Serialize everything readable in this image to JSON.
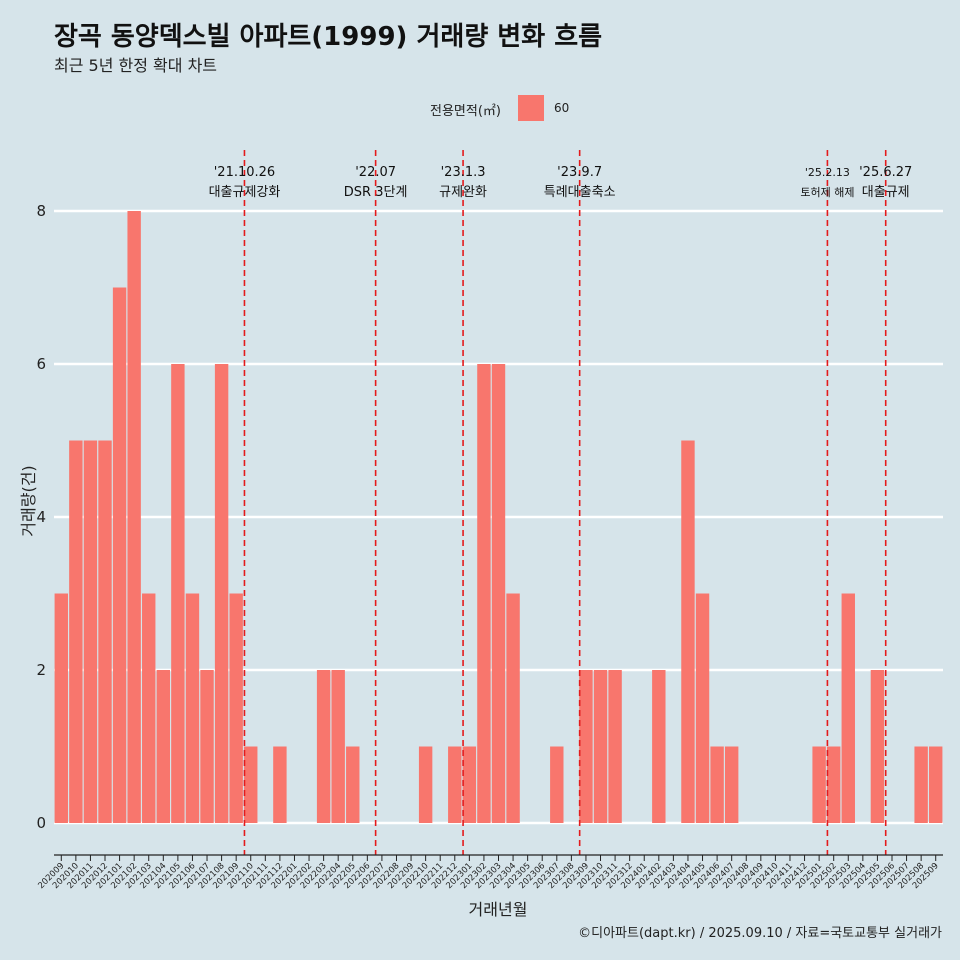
{
  "header": {
    "title": "장곡 동양덱스빌 아파트(1999) 거래량 변화 흐름",
    "subtitle": "최근 5년 한정 확대 차트"
  },
  "legend": {
    "title": "전용면적(㎡)",
    "label": "60",
    "color": "#f8766d"
  },
  "caption": "©디아파트(dapt.kr) / 2025.09.10 / 자료=국토교통부 실거래가",
  "chart_data": {
    "type": "bar",
    "xlabel": "거래년월",
    "ylabel": "거래량(건)",
    "ylim": [
      0,
      8
    ],
    "yticks": [
      0,
      2,
      4,
      6,
      8
    ],
    "grid": true,
    "legend_position": "top",
    "categories": [
      "202009",
      "202010",
      "202011",
      "202012",
      "202101",
      "202102",
      "202103",
      "202104",
      "202105",
      "202106",
      "202107",
      "202108",
      "202109",
      "202110",
      "202111",
      "202112",
      "202201",
      "202202",
      "202203",
      "202204",
      "202205",
      "202206",
      "202207",
      "202208",
      "202209",
      "202210",
      "202211",
      "202212",
      "202301",
      "202302",
      "202303",
      "202304",
      "202305",
      "202306",
      "202307",
      "202308",
      "202309",
      "202310",
      "202311",
      "202312",
      "202401",
      "202402",
      "202403",
      "202404",
      "202405",
      "202406",
      "202407",
      "202408",
      "202409",
      "202410",
      "202411",
      "202412",
      "202501",
      "202502",
      "202503",
      "202504",
      "202505",
      "202506",
      "202507",
      "202508",
      "202509"
    ],
    "series": [
      {
        "name": "60",
        "color": "#f8766d",
        "values": [
          3,
          5,
          5,
          5,
          7,
          8,
          3,
          2,
          6,
          3,
          2,
          6,
          3,
          1,
          0,
          1,
          0,
          0,
          2,
          2,
          1,
          0,
          0,
          0,
          0,
          1,
          0,
          1,
          1,
          6,
          6,
          3,
          0,
          0,
          1,
          0,
          2,
          2,
          2,
          0,
          0,
          2,
          0,
          5,
          3,
          1,
          1,
          0,
          0,
          0,
          0,
          0,
          1,
          1,
          3,
          0,
          2,
          0,
          0,
          1,
          1
        ]
      }
    ],
    "annotations": [
      {
        "category": "202110",
        "date": "'21.10.26",
        "label": "대출규제강화"
      },
      {
        "category": "202207",
        "date": "'22.07",
        "label": "DSR 3단계"
      },
      {
        "category": "202301",
        "date": "'23.1.3",
        "label": "규제완화"
      },
      {
        "category": "202309",
        "date": "'23.9.7",
        "label": "특례대출축소"
      },
      {
        "category": "202502",
        "date": "'25.2.13",
        "label": "토허제 해제"
      },
      {
        "category": "202506",
        "date": "'25.6.27",
        "label": "대출규제"
      }
    ]
  }
}
